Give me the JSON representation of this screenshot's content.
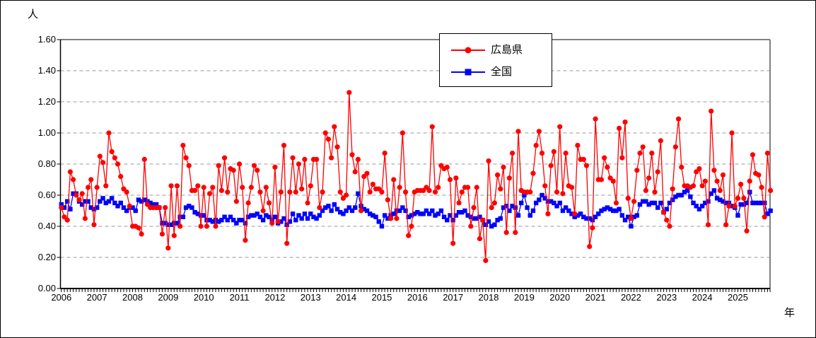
{
  "figure": {
    "y_axis_unit": "人",
    "x_axis_unit": "年",
    "y_ticks": [
      "0.00",
      "0.20",
      "0.40",
      "0.60",
      "0.80",
      "1.00",
      "1.20",
      "1.40",
      "1.60"
    ],
    "x_ticks": [
      "2006",
      "2007",
      "2008",
      "2009",
      "2010",
      "2011",
      "2012",
      "2013",
      "2014",
      "2015",
      "2016",
      "2017",
      "2018",
      "2019",
      "2020",
      "2021",
      "2022",
      "2023",
      "2024",
      "2025"
    ],
    "colors": {
      "hiroshima": "#ff0000",
      "national": "#0000ff",
      "grid": "#999999",
      "frame": "#808080",
      "axis": "#000000",
      "background": "#ffffff"
    }
  },
  "legend": {
    "items": [
      {
        "label": "広島県",
        "color": "#ff0000",
        "marker": "circle"
      },
      {
        "label": "全国",
        "color": "#0000ff",
        "marker": "square"
      }
    ]
  },
  "chart_data": {
    "type": "line",
    "frequency": "monthly",
    "x_start_year": 2006,
    "x_end_year": 2025,
    "ylim": [
      0,
      1.6
    ],
    "ytick_step": 0.2,
    "grid": "horizontal-dashed",
    "legend_position": "top-center",
    "series": [
      {
        "name": "広島県",
        "color": "#ff0000",
        "marker": "circle",
        "values": [
          0.52,
          0.46,
          0.44,
          0.75,
          0.7,
          0.6,
          0.57,
          0.61,
          0.45,
          0.65,
          0.7,
          0.41,
          0.65,
          0.85,
          0.81,
          0.66,
          1.0,
          0.88,
          0.84,
          0.8,
          0.72,
          0.64,
          0.62,
          0.53,
          0.4,
          0.4,
          0.39,
          0.35,
          0.83,
          0.54,
          0.52,
          0.52,
          0.52,
          0.52,
          0.35,
          0.52,
          0.26,
          0.66,
          0.34,
          0.66,
          0.4,
          0.92,
          0.84,
          0.79,
          0.63,
          0.63,
          0.66,
          0.4,
          0.65,
          0.4,
          0.61,
          0.65,
          0.4,
          0.79,
          0.63,
          0.84,
          0.62,
          0.77,
          0.76,
          0.56,
          0.8,
          0.65,
          0.31,
          0.55,
          0.65,
          0.79,
          0.76,
          0.62,
          0.5,
          0.65,
          0.55,
          0.42,
          0.78,
          0.43,
          0.62,
          0.92,
          0.29,
          0.62,
          0.84,
          0.62,
          0.8,
          0.64,
          0.83,
          0.55,
          0.66,
          0.83,
          0.83,
          0.52,
          0.62,
          1.0,
          0.96,
          0.84,
          1.04,
          0.91,
          0.62,
          0.58,
          0.6,
          1.26,
          0.86,
          0.75,
          0.83,
          0.5,
          0.72,
          0.74,
          0.62,
          0.67,
          0.64,
          0.64,
          0.62,
          0.87,
          0.57,
          0.45,
          0.7,
          0.45,
          0.65,
          1.0,
          0.62,
          0.34,
          0.4,
          0.62,
          0.63,
          0.63,
          0.63,
          0.65,
          0.63,
          1.04,
          0.62,
          0.65,
          0.79,
          0.77,
          0.78,
          0.7,
          0.29,
          0.71,
          0.55,
          0.62,
          0.65,
          0.65,
          0.4,
          0.52,
          0.65,
          0.32,
          0.44,
          0.18,
          0.82,
          0.52,
          0.55,
          0.73,
          0.64,
          0.78,
          0.36,
          0.71,
          0.87,
          0.36,
          1.01,
          0.63,
          0.62,
          0.62,
          0.62,
          0.74,
          0.92,
          1.01,
          0.87,
          0.66,
          0.48,
          0.79,
          0.88,
          0.62,
          1.04,
          0.61,
          0.87,
          0.66,
          0.65,
          0.48,
          0.92,
          0.83,
          0.83,
          0.79,
          0.27,
          0.39,
          1.09,
          0.7,
          0.7,
          0.84,
          0.78,
          0.71,
          0.69,
          0.55,
          1.03,
          0.84,
          1.07,
          0.58,
          0.45,
          0.56,
          0.76,
          0.87,
          0.91,
          0.63,
          0.71,
          0.87,
          0.62,
          0.75,
          0.95,
          0.49,
          0.44,
          0.4,
          0.64,
          0.91,
          1.09,
          0.78,
          0.66,
          0.66,
          0.65,
          0.66,
          0.75,
          0.77,
          0.66,
          0.69,
          0.41,
          1.14,
          0.76,
          0.69,
          0.63,
          0.73,
          0.41,
          0.53,
          1.0,
          0.53,
          0.58,
          0.67,
          0.58,
          0.37,
          0.69,
          0.86,
          0.74,
          0.73,
          0.65,
          0.46,
          0.87,
          0.63
        ]
      },
      {
        "name": "全国",
        "color": "#0000ff",
        "marker": "square",
        "values": [
          0.54,
          0.52,
          0.56,
          0.51,
          0.61,
          0.61,
          0.56,
          0.54,
          0.56,
          0.56,
          0.52,
          0.51,
          0.52,
          0.56,
          0.58,
          0.55,
          0.56,
          0.58,
          0.55,
          0.53,
          0.55,
          0.52,
          0.5,
          0.52,
          0.52,
          0.5,
          0.57,
          0.56,
          0.57,
          0.56,
          0.55,
          0.54,
          0.54,
          0.52,
          0.42,
          0.42,
          0.41,
          0.41,
          0.42,
          0.42,
          0.46,
          0.46,
          0.52,
          0.53,
          0.52,
          0.49,
          0.48,
          0.47,
          0.47,
          0.44,
          0.44,
          0.43,
          0.44,
          0.43,
          0.44,
          0.46,
          0.44,
          0.46,
          0.44,
          0.42,
          0.44,
          0.44,
          0.42,
          0.46,
          0.47,
          0.47,
          0.48,
          0.46,
          0.44,
          0.47,
          0.46,
          0.44,
          0.46,
          0.42,
          0.43,
          0.45,
          0.41,
          0.43,
          0.48,
          0.44,
          0.47,
          0.45,
          0.48,
          0.45,
          0.48,
          0.46,
          0.45,
          0.47,
          0.5,
          0.52,
          0.53,
          0.5,
          0.54,
          0.51,
          0.49,
          0.48,
          0.5,
          0.52,
          0.5,
          0.52,
          0.61,
          0.53,
          0.51,
          0.5,
          0.48,
          0.47,
          0.46,
          0.43,
          0.4,
          0.47,
          0.45,
          0.47,
          0.48,
          0.5,
          0.5,
          0.52,
          0.5,
          0.46,
          0.47,
          0.48,
          0.49,
          0.48,
          0.48,
          0.5,
          0.48,
          0.5,
          0.47,
          0.48,
          0.5,
          0.46,
          0.44,
          0.47,
          0.44,
          0.47,
          0.49,
          0.49,
          0.5,
          0.47,
          0.46,
          0.45,
          0.45,
          0.46,
          0.44,
          0.41,
          0.43,
          0.4,
          0.41,
          0.44,
          0.45,
          0.52,
          0.53,
          0.5,
          0.53,
          0.52,
          0.47,
          0.55,
          0.6,
          0.52,
          0.47,
          0.5,
          0.55,
          0.57,
          0.6,
          0.58,
          0.56,
          0.56,
          0.55,
          0.53,
          0.55,
          0.5,
          0.52,
          0.5,
          0.48,
          0.46,
          0.47,
          0.48,
          0.46,
          0.45,
          0.45,
          0.44,
          0.46,
          0.48,
          0.5,
          0.51,
          0.52,
          0.51,
          0.5,
          0.5,
          0.51,
          0.47,
          0.44,
          0.46,
          0.4,
          0.46,
          0.47,
          0.54,
          0.56,
          0.56,
          0.54,
          0.55,
          0.55,
          0.52,
          0.55,
          0.49,
          0.51,
          0.55,
          0.57,
          0.59,
          0.6,
          0.6,
          0.62,
          0.63,
          0.59,
          0.55,
          0.53,
          0.51,
          0.53,
          0.55,
          0.56,
          0.61,
          0.63,
          0.58,
          0.57,
          0.56,
          0.55,
          0.55,
          0.53,
          0.52,
          0.47,
          0.54,
          0.54,
          0.55,
          0.62,
          0.55,
          0.55,
          0.55,
          0.55,
          0.55,
          0.48,
          0.5
        ]
      }
    ]
  }
}
